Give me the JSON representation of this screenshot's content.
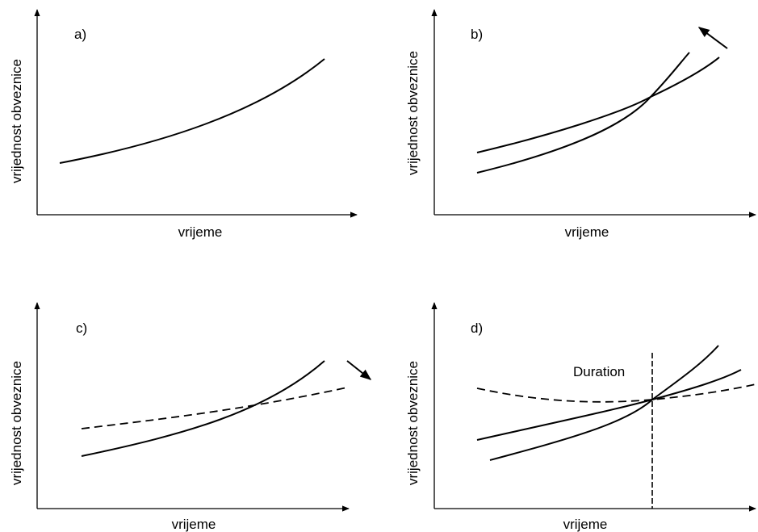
{
  "panels": [
    {
      "letter": "a)",
      "xlabel": "vrijeme",
      "ylabel": "vrijednost obveznice"
    },
    {
      "letter": "b)",
      "xlabel": "vrijeme",
      "ylabel": "vrijednost obveznice"
    },
    {
      "letter": "c)",
      "xlabel": "vrijeme",
      "ylabel": "vrijednost obveznice"
    },
    {
      "letter": "d)",
      "xlabel": "vrijeme",
      "ylabel": "vrijednost obveznice",
      "marker": "Duration"
    }
  ]
}
